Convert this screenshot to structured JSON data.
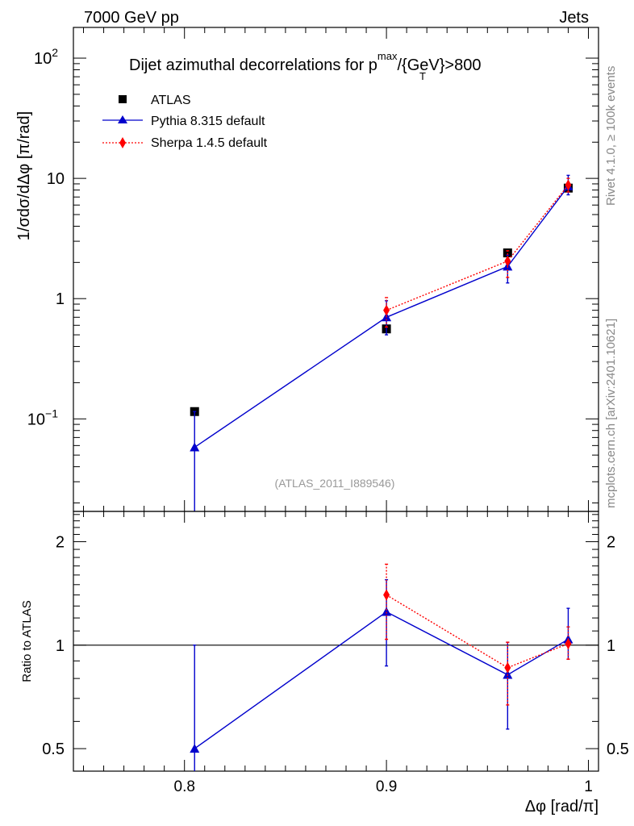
{
  "header": {
    "energy_label": "7000 GeV pp",
    "category_label": "Jets"
  },
  "side_labels": {
    "rivet": "Rivet 4.1.0, ≥ 100k events",
    "mcplots": "mcplots.cern.ch [arXiv:2401.10621]"
  },
  "chart_data": [
    {
      "type": "line",
      "panel": "main",
      "title_prefix": "Dijet azimuthal decorrelations for p",
      "title_sup": "max",
      "title_sub": "T",
      "title_suffix": "/{GeV}>800",
      "ylabel": "1/σdσ/dΔφ [π/rad]",
      "yscale": "log",
      "ylim": [
        0.017,
        180
      ],
      "xlim": [
        0.745,
        1.005
      ],
      "analysis_tag": "(ATLAS_2011_I889546)",
      "legend_position": "top-left",
      "y_ticks": [
        {
          "value": 0.1,
          "base": "10",
          "exp": "−1"
        },
        {
          "value": 1,
          "base": "1",
          "exp": ""
        },
        {
          "value": 10,
          "base": "10",
          "exp": ""
        },
        {
          "value": 100,
          "base": "10",
          "exp": "2"
        }
      ],
      "series": [
        {
          "name": "ATLAS",
          "style": "marker",
          "marker": "square",
          "color": "#000000",
          "x": [
            0.805,
            0.9,
            0.96,
            0.99
          ],
          "y": [
            0.115,
            0.56,
            2.4,
            8.3
          ],
          "err_low": [
            0,
            0,
            0,
            0
          ],
          "err_high": [
            0,
            0,
            0,
            0
          ]
        },
        {
          "name": "Pythia 8.315 default",
          "style": "solid",
          "marker": "triangle",
          "color": "#0000cc",
          "x": [
            0.805,
            0.9,
            0.96,
            0.99
          ],
          "y": [
            0.058,
            0.7,
            1.85,
            8.6
          ],
          "err_low": [
            0.058,
            0.2,
            0.5,
            1.3
          ],
          "err_high": [
            0.057,
            0.26,
            0.45,
            2.0
          ]
        },
        {
          "name": "Sherpa 1.4.5 default",
          "style": "dotted",
          "marker": "diamond",
          "color": "#ff0000",
          "x": [
            0.9,
            0.96,
            0.99
          ],
          "y": [
            0.8,
            2.05,
            8.8
          ],
          "err_low": [
            0.22,
            0.55,
            1.1
          ],
          "err_high": [
            0.22,
            0.45,
            1.2
          ]
        }
      ]
    },
    {
      "type": "line",
      "panel": "ratio",
      "ylabel": "Ratio to ATLAS",
      "xlabel": "Δφ [rad/π]",
      "yscale": "log",
      "ylim": [
        0.43,
        2.45
      ],
      "xlim": [
        0.745,
        1.005
      ],
      "reference_line": 1,
      "x_ticks": [
        0.8,
        0.9,
        1
      ],
      "x_tick_labels": [
        "0.8",
        "0.9",
        "1"
      ],
      "y_ticks": [
        0.5,
        1,
        2
      ],
      "y_tick_labels": [
        "0.5",
        "1",
        "2"
      ],
      "series": [
        {
          "name": "Pythia 8.315 default",
          "style": "solid",
          "marker": "triangle",
          "color": "#0000cc",
          "x": [
            0.805,
            0.9,
            0.96,
            0.99
          ],
          "y": [
            0.5,
            1.25,
            0.82,
            1.04
          ],
          "err_low": [
            0.5,
            0.38,
            0.25,
            0.13
          ],
          "err_high": [
            0.5,
            0.3,
            0.2,
            0.24
          ]
        },
        {
          "name": "Sherpa 1.4.5 default",
          "style": "dotted",
          "marker": "diamond",
          "color": "#ff0000",
          "x": [
            0.9,
            0.96,
            0.99
          ],
          "y": [
            1.4,
            0.86,
            1.01
          ],
          "err_low": [
            0.36,
            0.19,
            0.1
          ],
          "err_high": [
            0.32,
            0.16,
            0.12
          ]
        }
      ]
    }
  ]
}
